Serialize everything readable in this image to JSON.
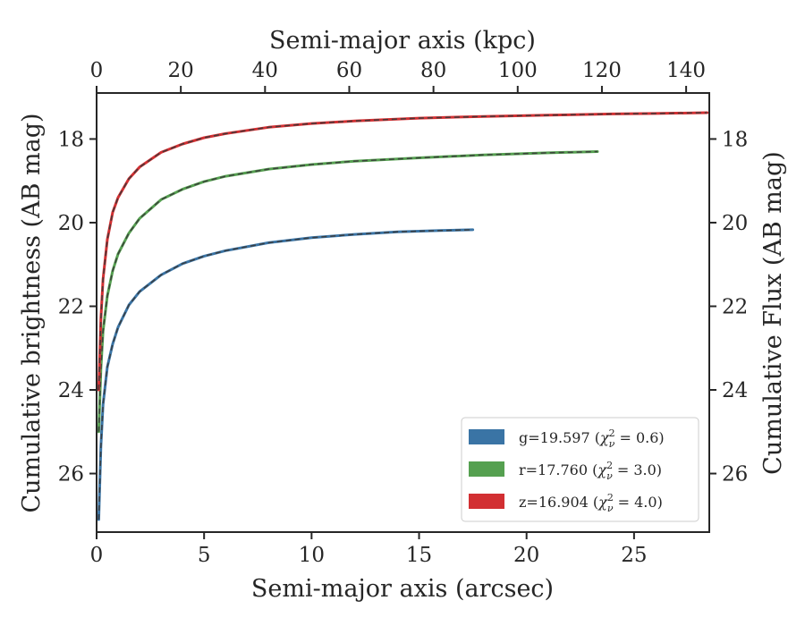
{
  "chart_data": {
    "type": "line",
    "xlabel": "Semi-major axis (arcsec)",
    "x2label": "Semi-major axis (kpc)",
    "ylabel": "Cumulative brightness (AB mag)",
    "y2label": "Cumulative Flux (AB mag)",
    "xlim": [
      0,
      28.5
    ],
    "x2lim": [
      0,
      145.5
    ],
    "ylim": [
      27.4,
      16.9
    ],
    "y_inverted": true,
    "x_ticks": [
      0,
      5,
      10,
      15,
      20,
      25
    ],
    "x_tick_labels": [
      "0",
      "5",
      "10",
      "15",
      "20",
      "25"
    ],
    "x2_ticks": [
      0,
      20,
      40,
      60,
      80,
      100,
      120,
      140
    ],
    "x2_tick_labels": [
      "0",
      "20",
      "40",
      "60",
      "80",
      "100",
      "120",
      "140"
    ],
    "y_ticks": [
      18,
      20,
      22,
      24,
      26
    ],
    "y_tick_labels": [
      "18",
      "20",
      "22",
      "24",
      "26"
    ],
    "legend_position": "lower-right",
    "grid": false,
    "series": [
      {
        "name": "g=19.597 (χ²ᵥ = 0.6)",
        "legend_main": "g=19.597 (",
        "legend_chi": "χ",
        "legend_sup": "2",
        "legend_sub": "ν",
        "legend_tail": " = 0.6)",
        "color": "#3a74a5",
        "x": [
          0.1,
          0.2,
          0.3,
          0.5,
          0.75,
          1,
          1.5,
          2,
          3,
          4,
          5,
          6,
          8,
          10,
          12,
          14,
          16,
          17.5
        ],
        "y": [
          27.1,
          25.35,
          24.35,
          23.45,
          22.9,
          22.5,
          21.97,
          21.65,
          21.25,
          20.98,
          20.8,
          20.67,
          20.48,
          20.36,
          20.28,
          20.22,
          20.19,
          20.17
        ]
      },
      {
        "name": "r=17.760 (χ²ᵥ = 3.0)",
        "legend_main": "r=17.760 (",
        "legend_chi": "χ",
        "legend_sup": "2",
        "legend_sub": "ν",
        "legend_tail": " = 3.0)",
        "color": "#55a050",
        "x": [
          0.1,
          0.2,
          0.3,
          0.5,
          0.75,
          1,
          1.5,
          2,
          3,
          4,
          5,
          6,
          8,
          10,
          12,
          15,
          18,
          21,
          23.3
        ],
        "y": [
          25.0,
          23.5,
          22.6,
          21.75,
          21.15,
          20.75,
          20.25,
          19.9,
          19.45,
          19.2,
          19.02,
          18.89,
          18.72,
          18.61,
          18.53,
          18.45,
          18.38,
          18.33,
          18.3
        ]
      },
      {
        "name": "z=16.904 (χ²ᵥ = 4.0)",
        "legend_main": "z=16.904 (",
        "legend_chi": "χ",
        "legend_sup": "2",
        "legend_sub": "ν",
        "legend_tail": " = 4.0)",
        "color": "#d22f32",
        "x": [
          0.1,
          0.2,
          0.3,
          0.5,
          0.75,
          1,
          1.5,
          2,
          3,
          4,
          5,
          6,
          8,
          10,
          12,
          15,
          18,
          21,
          24,
          26,
          28.4
        ],
        "y": [
          24.0,
          22.3,
          21.35,
          20.4,
          19.75,
          19.4,
          18.95,
          18.67,
          18.32,
          18.12,
          17.97,
          17.87,
          17.72,
          17.63,
          17.57,
          17.5,
          17.46,
          17.43,
          17.4,
          17.39,
          17.37
        ]
      }
    ]
  }
}
